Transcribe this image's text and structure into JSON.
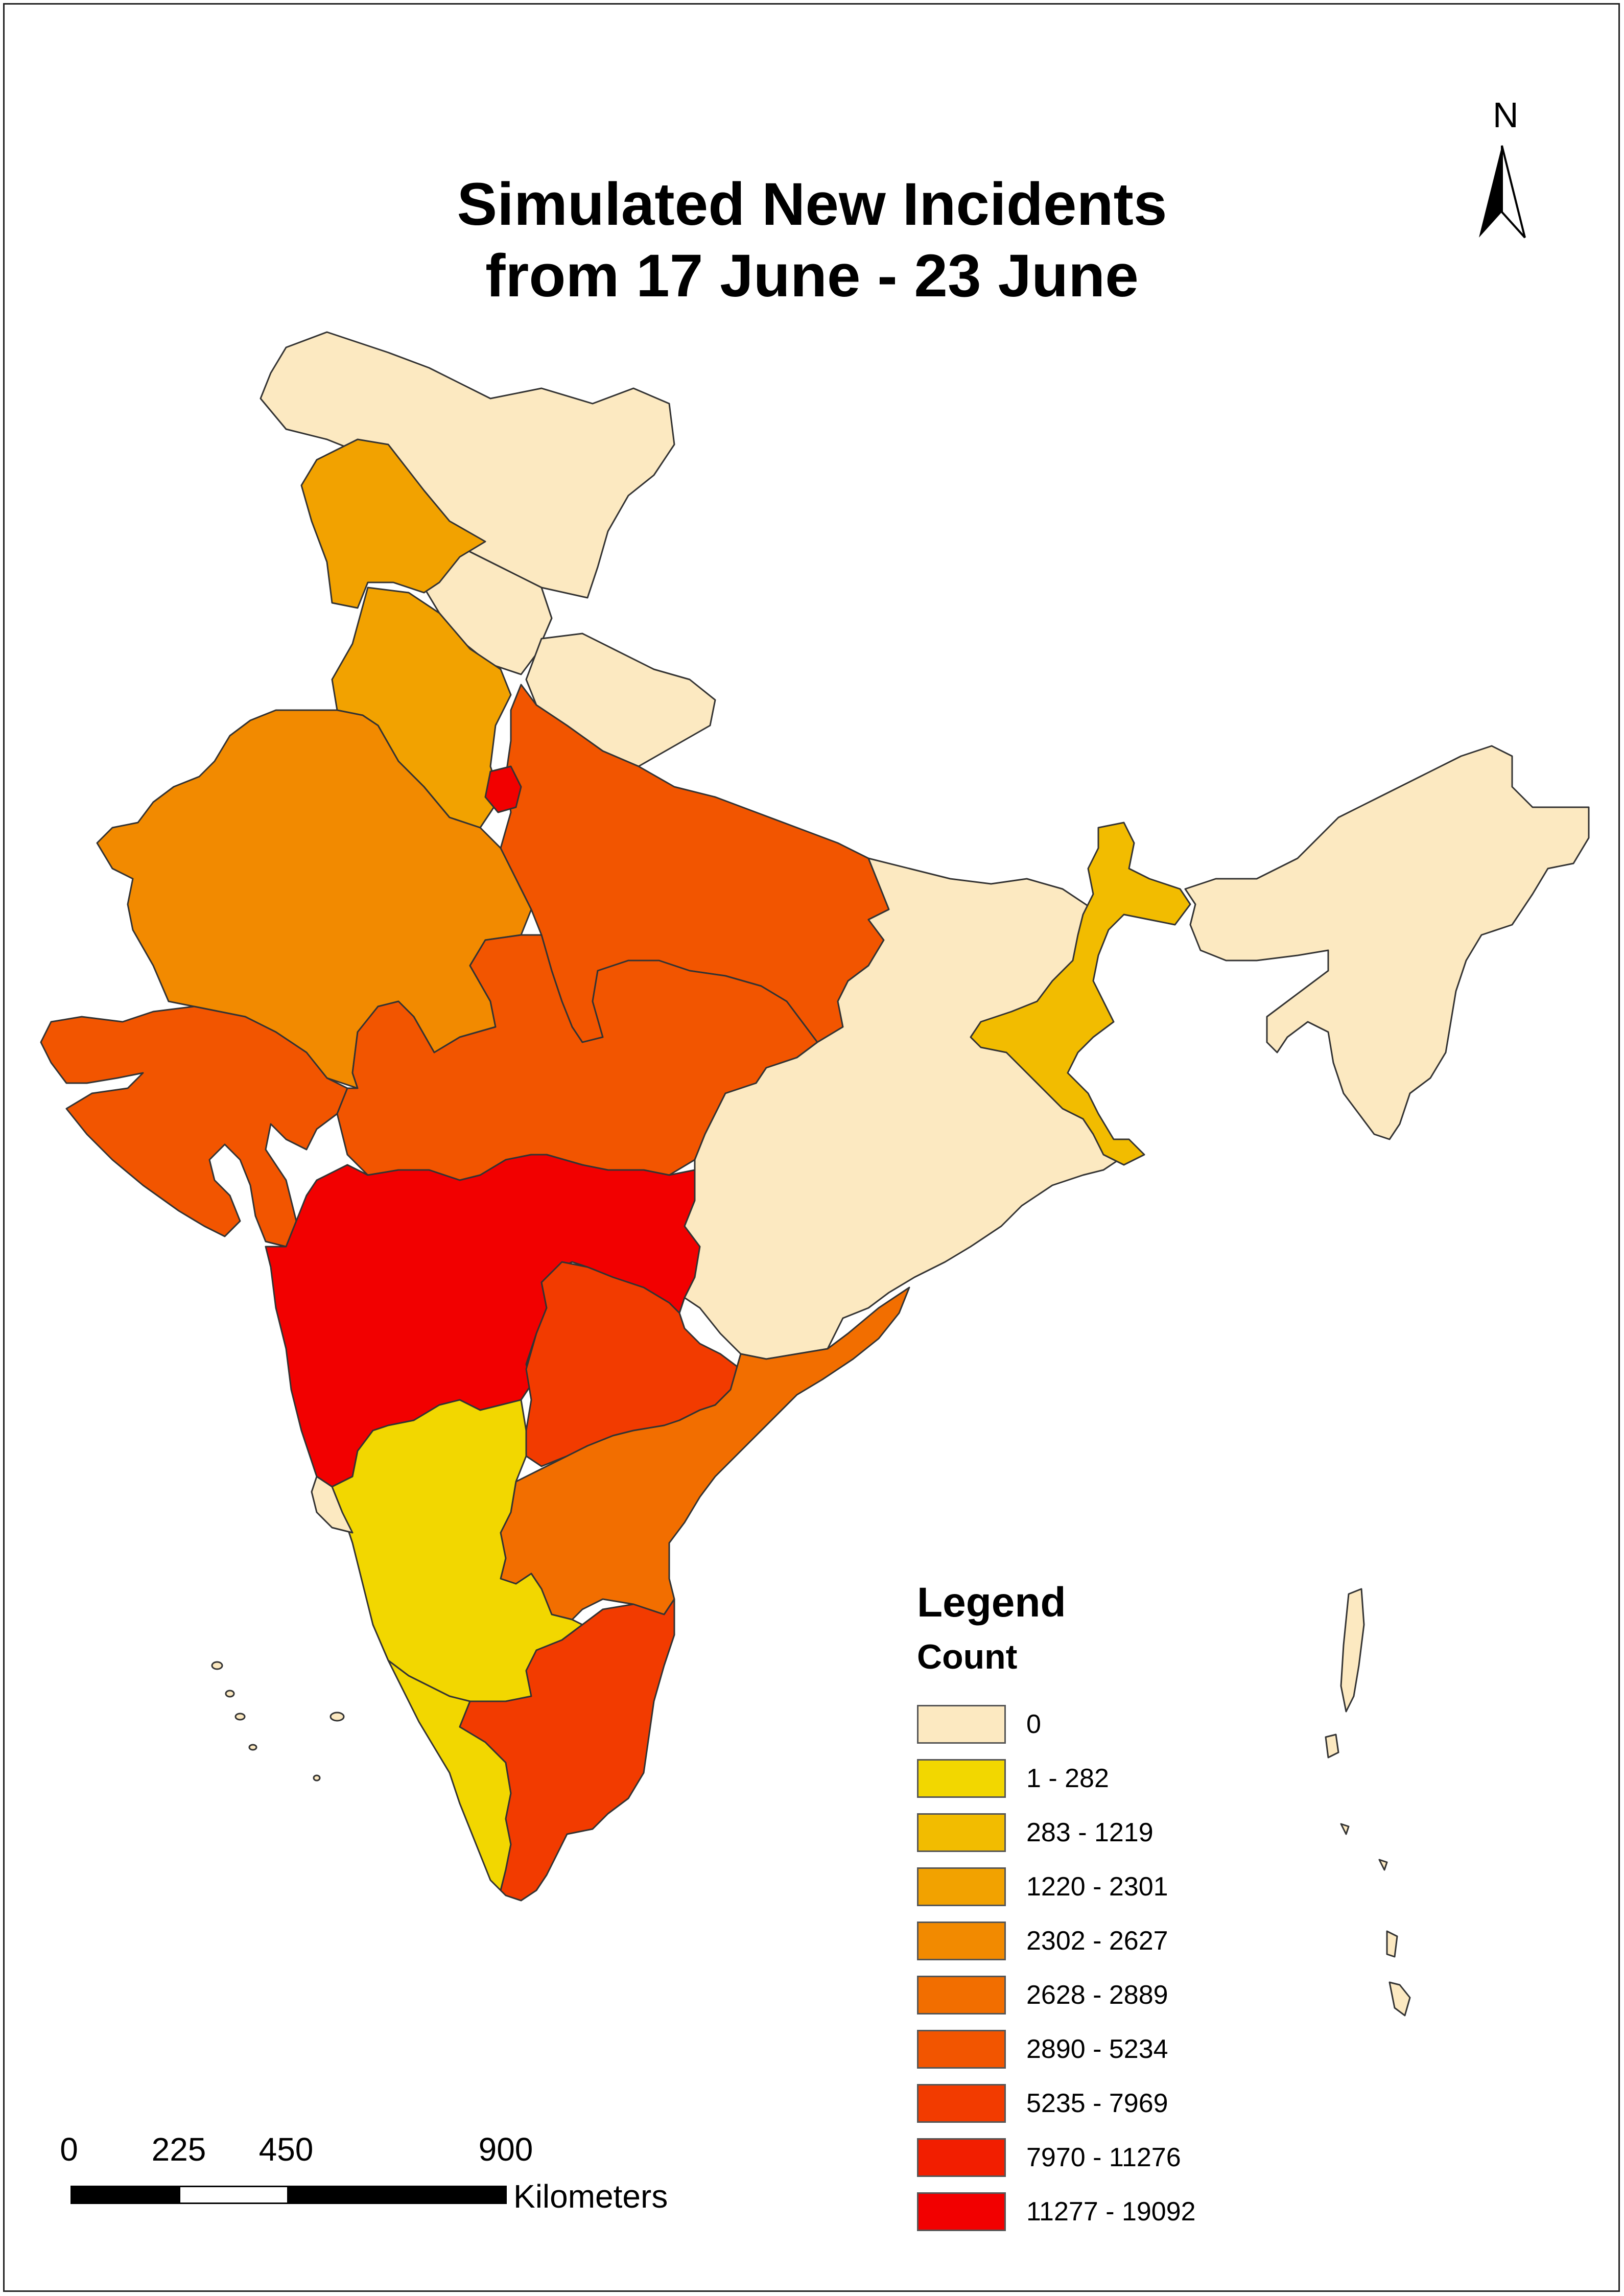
{
  "title": {
    "line1": "Simulated New Incidents",
    "line2": "from 17 June - 23 June"
  },
  "north_arrow": {
    "label": "N"
  },
  "legend": {
    "title": "Legend",
    "subtitle": "Count",
    "items": [
      {
        "label": "0",
        "color": "#FCE9C1"
      },
      {
        "label": "1 - 282",
        "color": "#F2D700"
      },
      {
        "label": "283 - 1219",
        "color": "#F2BC00"
      },
      {
        "label": "1220 - 2301",
        "color": "#F2A200"
      },
      {
        "label": "2302 - 2627",
        "color": "#F28A00"
      },
      {
        "label": "2628 - 2889",
        "color": "#F26E00"
      },
      {
        "label": "2890 - 5234",
        "color": "#F25500"
      },
      {
        "label": "5235 - 7969",
        "color": "#F23B00"
      },
      {
        "label": "7970 - 11276",
        "color": "#F21E00"
      },
      {
        "label": "11277 - 19092",
        "color": "#F20000"
      }
    ]
  },
  "scale_bar": {
    "ticks": [
      "0",
      "225",
      "450",
      "900"
    ],
    "unit": "Kilometers"
  },
  "regions": [
    {
      "id": "jammu-kashmir",
      "class": "0"
    },
    {
      "id": "himachal",
      "class": "0"
    },
    {
      "id": "uttarakhand",
      "class": "0"
    },
    {
      "id": "punjab",
      "class": "1220 - 2301"
    },
    {
      "id": "haryana",
      "class": "1220 - 2301"
    },
    {
      "id": "delhi",
      "class": "11277 - 19092"
    },
    {
      "id": "rajasthan",
      "class": "2302 - 2627"
    },
    {
      "id": "gujarat",
      "class": "2890 - 5234"
    },
    {
      "id": "uttar-pradesh",
      "class": "2890 - 5234"
    },
    {
      "id": "madhya-pradesh",
      "class": "2890 - 5234"
    },
    {
      "id": "maharashtra",
      "class": "11277 - 19092"
    },
    {
      "id": "bihar-jharkhand-odisha-chhattisgarh",
      "class": "0"
    },
    {
      "id": "west-bengal",
      "class": "283 - 1219"
    },
    {
      "id": "northeast",
      "class": "0"
    },
    {
      "id": "telangana",
      "class": "5235 - 7969"
    },
    {
      "id": "andhra-pradesh",
      "class": "2628 - 2889"
    },
    {
      "id": "karnataka",
      "class": "1 - 282"
    },
    {
      "id": "kerala",
      "class": "1 - 282"
    },
    {
      "id": "tamil-nadu",
      "class": "5235 - 7969"
    },
    {
      "id": "goa",
      "class": "0"
    },
    {
      "id": "andaman-nicobar",
      "class": "0"
    },
    {
      "id": "lakshadweep",
      "class": "0"
    }
  ]
}
